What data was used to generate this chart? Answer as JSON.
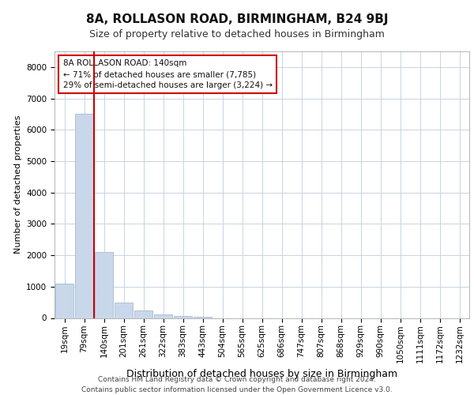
{
  "title": "8A, ROLLASON ROAD, BIRMINGHAM, B24 9BJ",
  "subtitle": "Size of property relative to detached houses in Birmingham",
  "xlabel": "Distribution of detached houses by size in Birmingham",
  "ylabel": "Number of detached properties",
  "annotation_line1": "8A ROLLASON ROAD: 140sqm",
  "annotation_line2": "← 71% of detached houses are smaller (7,785)",
  "annotation_line3": "29% of semi-detached houses are larger (3,224) →",
  "footer_line1": "Contains HM Land Registry data © Crown copyright and database right 2024.",
  "footer_line2": "Contains public sector information licensed under the Open Government Licence v3.0.",
  "categories": [
    "19sqm",
    "79sqm",
    "140sqm",
    "201sqm",
    "261sqm",
    "322sqm",
    "383sqm",
    "443sqm",
    "504sqm",
    "565sqm",
    "625sqm",
    "686sqm",
    "747sqm",
    "807sqm",
    "868sqm",
    "929sqm",
    "990sqm",
    "1050sqm",
    "1111sqm",
    "1172sqm",
    "1232sqm"
  ],
  "values": [
    1100,
    6500,
    2100,
    500,
    250,
    120,
    70,
    40,
    0,
    0,
    0,
    0,
    0,
    0,
    0,
    0,
    0,
    0,
    0,
    0,
    0
  ],
  "bar_color": "#c8d8ea",
  "bar_edge_color": "#9ab0c8",
  "red_line_color": "#cc0000",
  "background_color": "#ffffff",
  "grid_color": "#c8d4e0",
  "ylim": [
    0,
    8500
  ],
  "yticks": [
    0,
    1000,
    2000,
    3000,
    4000,
    5000,
    6000,
    7000,
    8000
  ],
  "red_line_index": 1.5,
  "title_fontsize": 11,
  "subtitle_fontsize": 9,
  "ylabel_fontsize": 8,
  "xlabel_fontsize": 9,
  "tick_fontsize": 7.5,
  "footer_fontsize": 6.5,
  "annot_fontsize": 7.5
}
